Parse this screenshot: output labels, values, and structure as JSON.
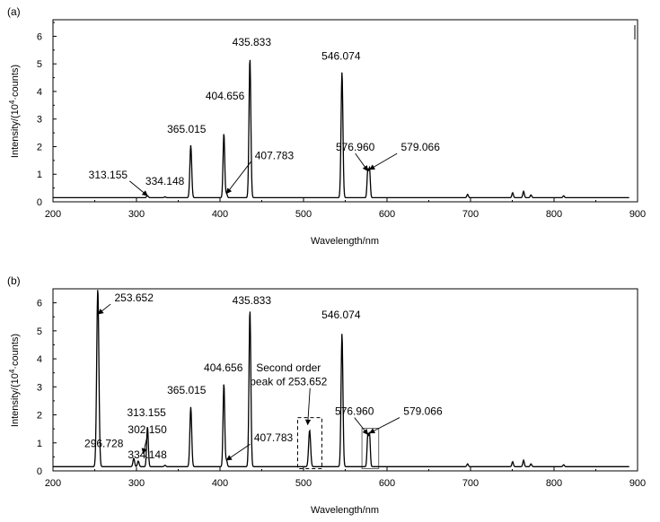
{
  "chart_data": [
    {
      "type": "line",
      "panel_label": "(a)",
      "xlabel": "Wavelength/nm",
      "ylabel": {
        "base": "Intensity/(10",
        "sup": "4",
        "rest": "·counts)"
      },
      "xlim": [
        200,
        900
      ],
      "ylim": [
        0,
        6.6
      ],
      "xticks": [
        200,
        300,
        400,
        500,
        600,
        700,
        800,
        900
      ],
      "yticks": [
        0,
        1,
        2,
        3,
        4,
        5,
        6
      ],
      "grid": false,
      "baseline": 0.15,
      "peaks": [
        {
          "x": 313.155,
          "y": 0.22,
          "w": 1.0
        },
        {
          "x": 334.148,
          "y": 0.18,
          "w": 1.0
        },
        {
          "x": 365.015,
          "y": 2.05,
          "w": 1.1
        },
        {
          "x": 404.656,
          "y": 2.48,
          "w": 1.0
        },
        {
          "x": 407.783,
          "y": 0.3,
          "w": 0.9
        },
        {
          "x": 435.833,
          "y": 5.2,
          "w": 1.1
        },
        {
          "x": 546.074,
          "y": 4.7,
          "w": 1.1
        },
        {
          "x": 576.96,
          "y": 1.12,
          "w": 0.9
        },
        {
          "x": 579.066,
          "y": 1.17,
          "w": 0.9
        },
        {
          "x": 696.5,
          "y": 0.27,
          "w": 0.9
        },
        {
          "x": 750.4,
          "y": 0.33,
          "w": 0.9
        },
        {
          "x": 763.5,
          "y": 0.38,
          "w": 0.9
        },
        {
          "x": 772.4,
          "y": 0.25,
          "w": 0.9
        },
        {
          "x": 811.5,
          "y": 0.22,
          "w": 0.9
        }
      ],
      "annotations": [
        {
          "text": "313.155",
          "x": 313.155,
          "y": 0.22,
          "tx": 266,
          "ty": 0.85,
          "arrow": true
        },
        {
          "text": "334.148",
          "x": 334.148,
          "y": 0.18,
          "tx": 334,
          "ty": 0.62,
          "arrow": false
        },
        {
          "text": "365.015",
          "x": 365.015,
          "y": 2.05,
          "tx": 360,
          "ty": 2.5,
          "arrow": false
        },
        {
          "text": "404.656",
          "x": 404.656,
          "y": 2.48,
          "tx": 406,
          "ty": 3.7,
          "arrow": false
        },
        {
          "text": "407.783",
          "x": 407.783,
          "y": 0.3,
          "tx": 465,
          "ty": 1.55,
          "arrow": true
        },
        {
          "text": "435.833",
          "x": 435.833,
          "y": 5.2,
          "tx": 438,
          "ty": 5.65,
          "arrow": false
        },
        {
          "text": "546.074",
          "x": 546.074,
          "y": 4.7,
          "tx": 545,
          "ty": 5.15,
          "arrow": false
        },
        {
          "text": "576.960",
          "x": 576.96,
          "y": 1.12,
          "tx": 562,
          "ty": 1.85,
          "arrow": true
        },
        {
          "text": "579.066",
          "x": 579.066,
          "y": 1.17,
          "tx": 640,
          "ty": 1.85,
          "arrow": true
        }
      ]
    },
    {
      "type": "line",
      "panel_label": "(b)",
      "xlabel": "Wavelength/nm",
      "ylabel": {
        "base": "Intensity/(10",
        "sup": "4",
        "rest": "·counts)"
      },
      "xlim": [
        200,
        900
      ],
      "ylim": [
        0,
        6.5
      ],
      "xticks": [
        200,
        300,
        400,
        500,
        600,
        700,
        800,
        900
      ],
      "yticks": [
        0,
        1,
        2,
        3,
        4,
        5,
        6
      ],
      "grid": false,
      "baseline": 0.15,
      "peaks": [
        {
          "x": 253.652,
          "y": 6.5,
          "w": 1.3
        },
        {
          "x": 296.728,
          "y": 0.45,
          "w": 1.0
        },
        {
          "x": 302.15,
          "y": 0.35,
          "w": 1.0
        },
        {
          "x": 313.155,
          "y": 1.58,
          "w": 1.0
        },
        {
          "x": 334.148,
          "y": 0.2,
          "w": 1.0
        },
        {
          "x": 365.015,
          "y": 2.28,
          "w": 1.1
        },
        {
          "x": 404.656,
          "y": 3.12,
          "w": 1.0
        },
        {
          "x": 407.783,
          "y": 0.38,
          "w": 0.9
        },
        {
          "x": 435.833,
          "y": 5.75,
          "w": 1.1
        },
        {
          "x": 507.3,
          "y": 1.45,
          "w": 1.2
        },
        {
          "x": 546.074,
          "y": 4.9,
          "w": 1.1
        },
        {
          "x": 576.96,
          "y": 1.25,
          "w": 0.9
        },
        {
          "x": 579.066,
          "y": 1.3,
          "w": 0.9
        },
        {
          "x": 696.5,
          "y": 0.25,
          "w": 0.9
        },
        {
          "x": 750.4,
          "y": 0.33,
          "w": 0.9
        },
        {
          "x": 763.5,
          "y": 0.38,
          "w": 0.9
        },
        {
          "x": 772.4,
          "y": 0.25,
          "w": 0.9
        },
        {
          "x": 811.5,
          "y": 0.22,
          "w": 0.9
        }
      ],
      "annotations": [
        {
          "text": "253.652",
          "x": 254,
          "y": 5.6,
          "tx": 297,
          "ty": 6.05,
          "arrow": true
        },
        {
          "text": "296.728",
          "x": 296.728,
          "y": 0.45,
          "tx": 261,
          "ty": 0.85,
          "arrow": false
        },
        {
          "text": "313.155",
          "x": 313.155,
          "y": 1.58,
          "tx": 312,
          "ty": 1.95,
          "arrow": false
        },
        {
          "text": "302.150",
          "x": 308,
          "y": 0.62,
          "tx": 313,
          "ty": 1.35,
          "arrow": true
        },
        {
          "text": "334.148",
          "x": 334.148,
          "y": 0.2,
          "tx": 313,
          "ty": 0.45,
          "arrow": false
        },
        {
          "text": "365.015",
          "x": 365.015,
          "y": 2.28,
          "tx": 360,
          "ty": 2.75,
          "arrow": false
        },
        {
          "text": "404.656",
          "x": 404.656,
          "y": 3.12,
          "tx": 404,
          "ty": 3.55,
          "arrow": false
        },
        {
          "text": "407.783",
          "x": 407.783,
          "y": 0.38,
          "tx": 464,
          "ty": 1.05,
          "arrow": true
        },
        {
          "text": "435.833",
          "x": 435.833,
          "y": 5.75,
          "tx": 438,
          "ty": 5.95,
          "arrow": false
        },
        {
          "text": "Second order",
          "x": 505,
          "y": 1.65,
          "tx": 482,
          "ty": 3.55,
          "arrow": false
        },
        {
          "text": "peak of 253.652",
          "x": 505,
          "y": 1.65,
          "tx": 482,
          "ty": 3.05,
          "arrow": true
        },
        {
          "text": "546.074",
          "x": 546.074,
          "y": 4.9,
          "tx": 545,
          "ty": 5.45,
          "arrow": false
        },
        {
          "text": "576.960",
          "x": 576.96,
          "y": 1.3,
          "tx": 561,
          "ty": 2.0,
          "arrow": true
        },
        {
          "text": "579.066",
          "x": 579.066,
          "y": 1.35,
          "tx": 643,
          "ty": 2.0,
          "arrow": true
        }
      ],
      "boxes": [
        {
          "x0": 493,
          "x1": 522,
          "y0": 0.08,
          "y1": 1.9,
          "style": "dashed"
        },
        {
          "x0": 570,
          "x1": 590,
          "y0": 0.08,
          "y1": 1.52,
          "style": "solid"
        }
      ]
    }
  ]
}
